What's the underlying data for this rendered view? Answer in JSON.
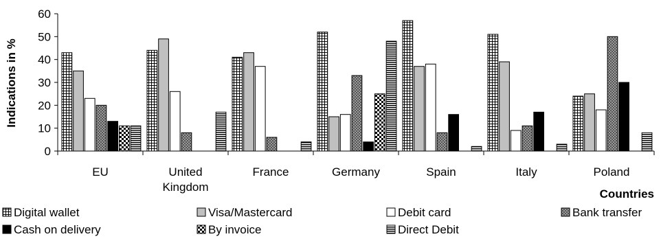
{
  "chart_data": {
    "type": "bar",
    "title": "",
    "xlabel": "Countries",
    "ylabel": "Indications in %",
    "ylim": [
      0,
      60
    ],
    "yticks": [
      0,
      10,
      20,
      30,
      40,
      50,
      60
    ],
    "grid": false,
    "legend_position": "bottom",
    "categories": [
      [
        "EU"
      ],
      [
        "United",
        "Kingdom"
      ],
      [
        "France"
      ],
      [
        "Germany"
      ],
      [
        "Spain"
      ],
      [
        "Italy"
      ],
      [
        "Poland"
      ]
    ],
    "series": [
      {
        "name": "Digital wallet",
        "pattern": "grid",
        "values": [
          43,
          44,
          41,
          52,
          57,
          51,
          24
        ]
      },
      {
        "name": "Visa/Mastercard",
        "pattern": "light-gray",
        "values": [
          35,
          49,
          43,
          15,
          37,
          39,
          25
        ]
      },
      {
        "name": "Debit card",
        "pattern": "white",
        "values": [
          23,
          26,
          37,
          16,
          38,
          9,
          18
        ]
      },
      {
        "name": "Bank transfer",
        "pattern": "dots",
        "values": [
          20,
          8,
          6,
          33,
          8,
          11,
          50
        ]
      },
      {
        "name": "Cash on delivery",
        "pattern": "black",
        "values": [
          13,
          null,
          null,
          4,
          16,
          17,
          30
        ]
      },
      {
        "name": "By invoice",
        "pattern": "checker",
        "values": [
          11,
          null,
          null,
          25,
          null,
          null,
          null
        ]
      },
      {
        "name": "Direct Debit",
        "pattern": "hlines",
        "values": [
          11,
          17,
          4,
          48,
          2,
          3,
          8
        ]
      }
    ]
  }
}
